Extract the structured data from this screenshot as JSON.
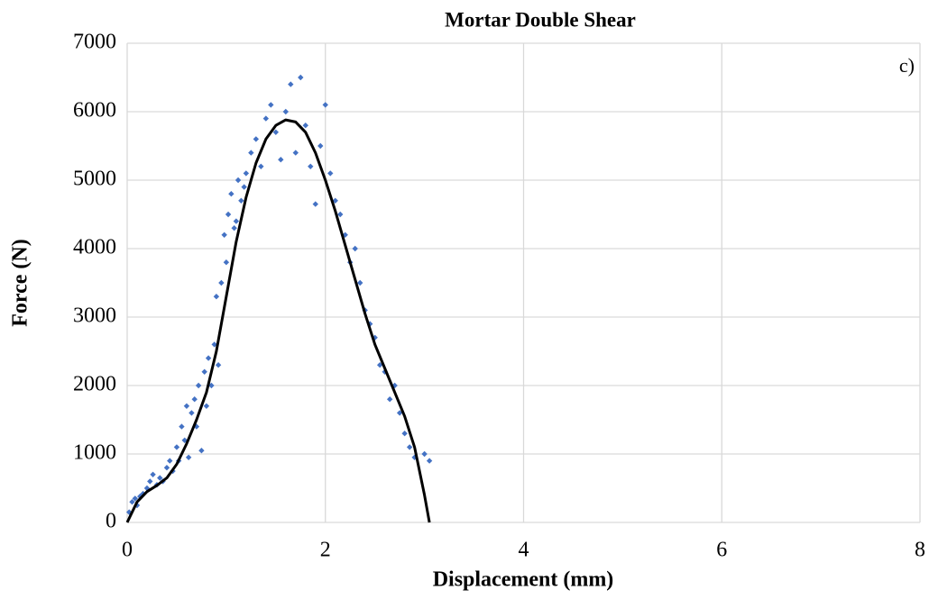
{
  "chart_data": {
    "type": "scatter",
    "title": "Mortar Double Shear",
    "annotation": "c)",
    "x_label": "Displacement (mm)",
    "y_label": "Force (N)",
    "xlim": [
      0,
      8
    ],
    "xticks": [
      0,
      2,
      4,
      6,
      8
    ],
    "ylim": [
      0,
      7000
    ],
    "yticks": [
      0,
      1000,
      2000,
      3000,
      4000,
      5000,
      6000,
      7000
    ],
    "grid": true,
    "series": [
      {
        "color": "#4472c4",
        "marker": "diamond",
        "x": [
          0.02,
          0.05,
          0.08,
          0.1,
          0.13,
          0.16,
          0.2,
          0.23,
          0.26,
          0.3,
          0.33,
          0.36,
          0.4,
          0.43,
          0.46,
          0.5,
          0.52,
          0.55,
          0.58,
          0.6,
          0.62,
          0.65,
          0.68,
          0.7,
          0.72,
          0.75,
          0.78,
          0.8,
          0.82,
          0.85,
          0.88,
          0.9,
          0.92,
          0.95,
          0.98,
          1.0,
          1.02,
          1.05,
          1.08,
          1.1,
          1.12,
          1.15,
          1.18,
          1.2,
          1.25,
          1.3,
          1.35,
          1.4,
          1.45,
          1.5,
          1.55,
          1.6,
          1.65,
          1.7,
          1.75,
          1.8,
          1.85,
          1.9,
          1.95,
          2.0,
          2.05,
          2.1,
          2.15,
          2.2,
          2.25,
          2.3,
          2.35,
          2.4,
          2.45,
          2.5,
          2.55,
          2.6,
          2.65,
          2.7,
          2.75,
          2.8,
          2.85,
          2.9,
          3.0,
          3.05
        ],
        "values": [
          150,
          300,
          350,
          250,
          380,
          420,
          500,
          600,
          700,
          550,
          650,
          600,
          800,
          900,
          750,
          1100,
          900,
          1400,
          1200,
          1700,
          950,
          1600,
          1800,
          1400,
          2000,
          1050,
          2200,
          1700,
          2400,
          2000,
          2600,
          3300,
          2300,
          3500,
          4200,
          3800,
          4500,
          4800,
          4300,
          4400,
          5000,
          4700,
          4900,
          5100,
          5400,
          5600,
          5200,
          5900,
          6100,
          5700,
          5300,
          6000,
          6400,
          5400,
          6500,
          5800,
          5200,
          4650,
          5500,
          6100,
          5100,
          4700,
          4500,
          4200,
          3800,
          4000,
          3500,
          3100,
          2900,
          2700,
          2300,
          2200,
          1800,
          2000,
          1600,
          1300,
          1100,
          950,
          1000,
          900
        ]
      },
      {
        "color": "#000000",
        "marker": "line",
        "x": [
          0,
          0.1,
          0.2,
          0.3,
          0.4,
          0.5,
          0.6,
          0.7,
          0.8,
          0.9,
          1.0,
          1.1,
          1.2,
          1.3,
          1.4,
          1.5,
          1.6,
          1.7,
          1.8,
          1.9,
          2.0,
          2.1,
          2.2,
          2.3,
          2.4,
          2.5,
          2.6,
          2.7,
          2.8,
          2.9,
          3.0,
          3.05
        ],
        "values": [
          0,
          300,
          450,
          540,
          650,
          850,
          1150,
          1500,
          1900,
          2500,
          3300,
          4100,
          4750,
          5250,
          5600,
          5800,
          5880,
          5850,
          5700,
          5400,
          5000,
          4550,
          4050,
          3550,
          3050,
          2600,
          2250,
          1900,
          1550,
          1100,
          400,
          0
        ]
      }
    ]
  }
}
